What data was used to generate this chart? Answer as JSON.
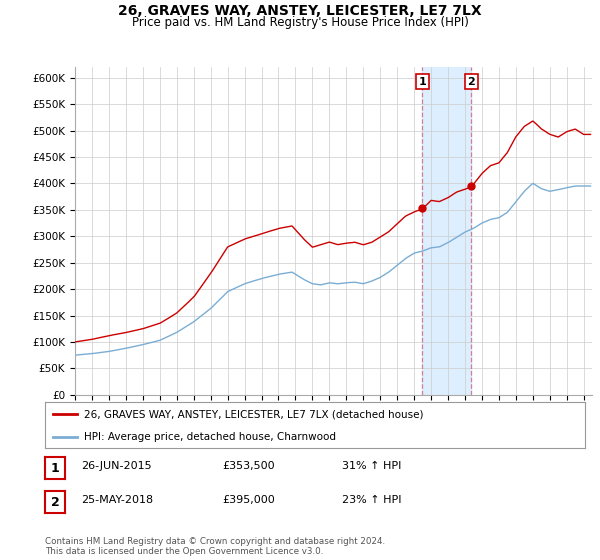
{
  "title": "26, GRAVES WAY, ANSTEY, LEICESTER, LE7 7LX",
  "subtitle": "Price paid vs. HM Land Registry's House Price Index (HPI)",
  "ylabel_ticks": [
    "£0",
    "£50K",
    "£100K",
    "£150K",
    "£200K",
    "£250K",
    "£300K",
    "£350K",
    "£400K",
    "£450K",
    "£500K",
    "£550K",
    "£600K"
  ],
  "ylim": [
    0,
    620000
  ],
  "xlim_start": 1995.0,
  "xlim_end": 2025.5,
  "sale1": {
    "date": 2015.48,
    "price": 353500,
    "label": "1",
    "pct": "31% ↑ HPI",
    "date_str": "26-JUN-2015"
  },
  "sale2": {
    "date": 2018.38,
    "price": 395000,
    "label": "2",
    "pct": "23% ↑ HPI",
    "date_str": "25-MAY-2018"
  },
  "shaded_region_x1": 2015.48,
  "shaded_region_x2": 2018.38,
  "legend_line1": "26, GRAVES WAY, ANSTEY, LEICESTER, LE7 7LX (detached house)",
  "legend_line2": "HPI: Average price, detached house, Charnwood",
  "table_row1": [
    "1",
    "26-JUN-2015",
    "£353,500",
    "31% ↑ HPI"
  ],
  "table_row2": [
    "2",
    "25-MAY-2018",
    "£395,000",
    "23% ↑ HPI"
  ],
  "footer": "Contains HM Land Registry data © Crown copyright and database right 2024.\nThis data is licensed under the Open Government Licence v3.0.",
  "red_color": "#cc0000",
  "blue_color": "#7aadd4",
  "shade_color": "#ddeeff",
  "grid_color": "#cccccc",
  "bg_color": "#ffffff",
  "red_keypoints_x": [
    1995.0,
    1996.0,
    1997.0,
    1998.0,
    1999.0,
    2000.0,
    2001.0,
    2002.0,
    2003.0,
    2004.0,
    2005.0,
    2006.0,
    2007.0,
    2007.8,
    2008.5,
    2009.0,
    2009.5,
    2010.0,
    2010.5,
    2011.0,
    2011.5,
    2012.0,
    2012.5,
    2013.0,
    2013.5,
    2014.0,
    2014.5,
    2015.0,
    2015.48,
    2016.0,
    2016.5,
    2017.0,
    2017.5,
    2018.38,
    2019.0,
    2019.5,
    2020.0,
    2020.5,
    2021.0,
    2021.5,
    2022.0,
    2022.5,
    2023.0,
    2023.5,
    2024.0,
    2024.5,
    2025.0
  ],
  "red_keypoints_y": [
    100000,
    105000,
    112000,
    118000,
    125000,
    135000,
    155000,
    185000,
    230000,
    280000,
    295000,
    305000,
    315000,
    320000,
    295000,
    280000,
    285000,
    290000,
    285000,
    288000,
    290000,
    285000,
    290000,
    300000,
    310000,
    325000,
    340000,
    348000,
    353500,
    370000,
    368000,
    375000,
    385000,
    395000,
    420000,
    435000,
    440000,
    460000,
    490000,
    510000,
    520000,
    505000,
    495000,
    490000,
    500000,
    505000,
    495000
  ],
  "blue_keypoints_x": [
    1995.0,
    1996.0,
    1997.0,
    1998.0,
    1999.0,
    2000.0,
    2001.0,
    2002.0,
    2003.0,
    2004.0,
    2005.0,
    2006.0,
    2007.0,
    2007.8,
    2008.5,
    2009.0,
    2009.5,
    2010.0,
    2010.5,
    2011.0,
    2011.5,
    2012.0,
    2012.5,
    2013.0,
    2013.5,
    2014.0,
    2014.5,
    2015.0,
    2015.5,
    2016.0,
    2016.5,
    2017.0,
    2017.5,
    2018.0,
    2018.5,
    2019.0,
    2019.5,
    2020.0,
    2020.5,
    2021.0,
    2021.5,
    2022.0,
    2022.5,
    2023.0,
    2023.5,
    2024.0,
    2024.5,
    2025.0
  ],
  "blue_keypoints_y": [
    75000,
    78000,
    82000,
    88000,
    95000,
    103000,
    118000,
    138000,
    163000,
    195000,
    210000,
    220000,
    228000,
    232000,
    218000,
    210000,
    208000,
    212000,
    210000,
    212000,
    213000,
    210000,
    215000,
    222000,
    232000,
    245000,
    258000,
    268000,
    272000,
    278000,
    280000,
    288000,
    298000,
    308000,
    315000,
    325000,
    332000,
    335000,
    345000,
    365000,
    385000,
    400000,
    390000,
    385000,
    388000,
    392000,
    395000,
    395000
  ]
}
